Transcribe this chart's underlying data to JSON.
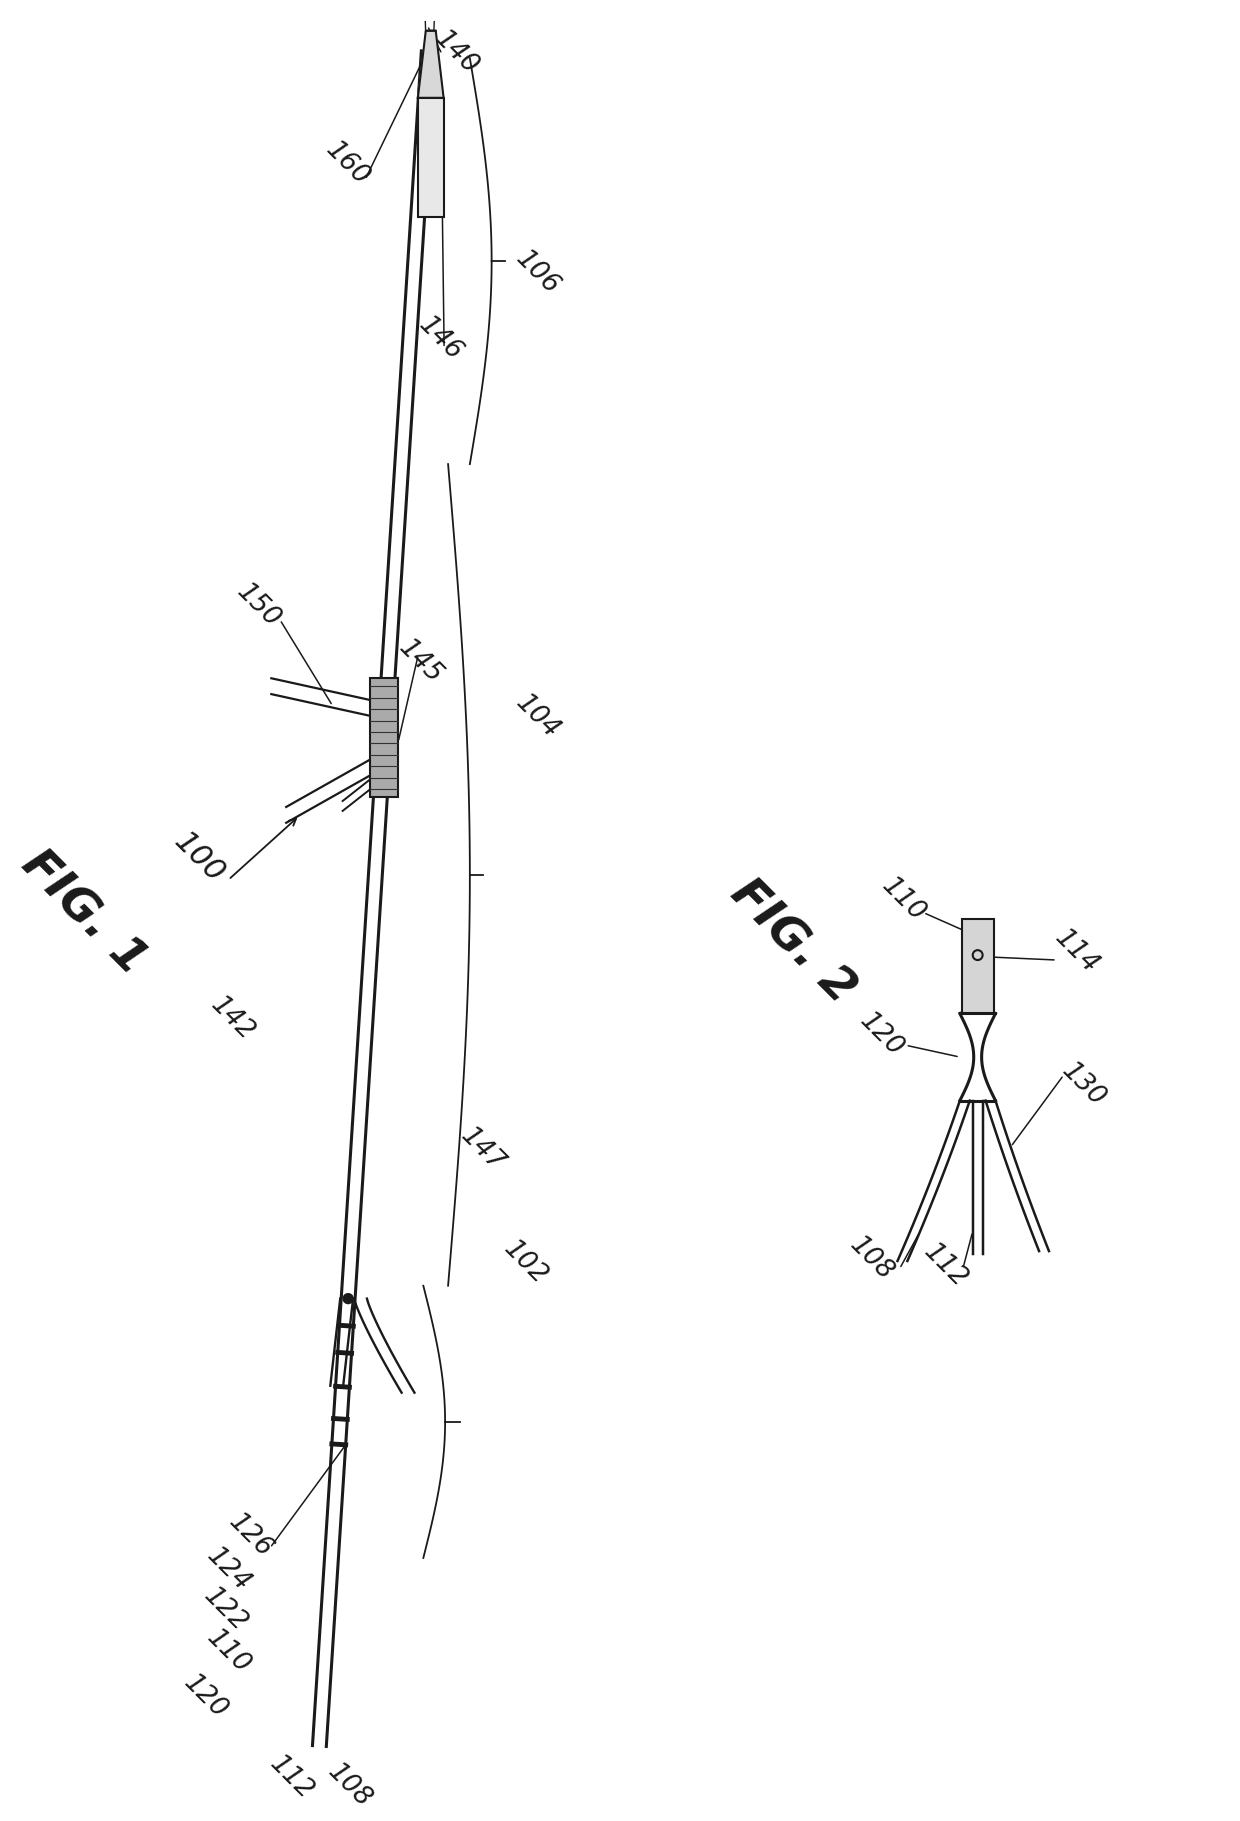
{
  "fig_width": 12.4,
  "fig_height": 18.21,
  "bg_color": "#ffffff",
  "line_color": "#1a1a1a",
  "text_color": "#1a1a1a"
}
